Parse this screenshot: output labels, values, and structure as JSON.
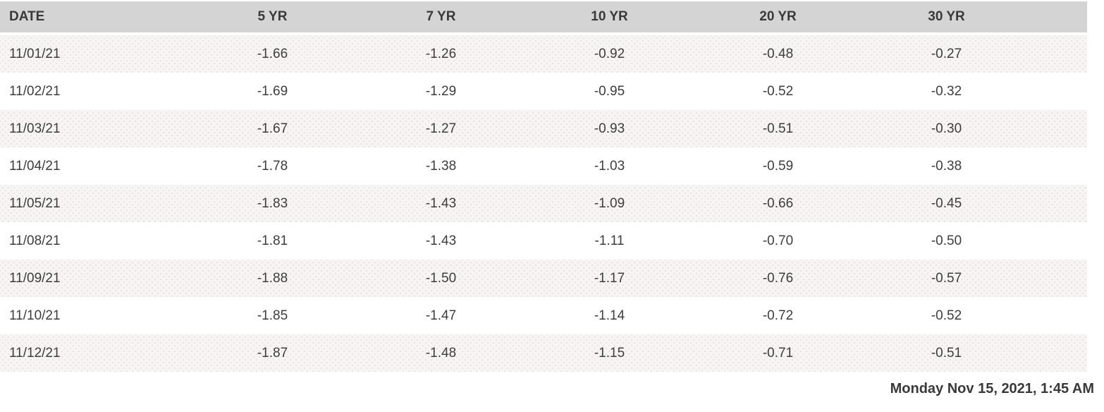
{
  "table": {
    "columns": [
      "DATE",
      "5 YR",
      "7 YR",
      "10 YR",
      "20 YR",
      "30 YR"
    ],
    "rows": [
      {
        "date": "11/01/21",
        "values": [
          "-1.66",
          "-1.26",
          "-0.92",
          "-0.48",
          "-0.27"
        ]
      },
      {
        "date": "11/02/21",
        "values": [
          "-1.69",
          "-1.29",
          "-0.95",
          "-0.52",
          "-0.32"
        ]
      },
      {
        "date": "11/03/21",
        "values": [
          "-1.67",
          "-1.27",
          "-0.93",
          "-0.51",
          "-0.30"
        ]
      },
      {
        "date": "11/04/21",
        "values": [
          "-1.78",
          "-1.38",
          "-1.03",
          "-0.59",
          "-0.38"
        ]
      },
      {
        "date": "11/05/21",
        "values": [
          "-1.83",
          "-1.43",
          "-1.09",
          "-0.66",
          "-0.45"
        ]
      },
      {
        "date": "11/08/21",
        "values": [
          "-1.81",
          "-1.43",
          "-1.11",
          "-0.70",
          "-0.50"
        ]
      },
      {
        "date": "11/09/21",
        "values": [
          "-1.88",
          "-1.50",
          "-1.17",
          "-0.76",
          "-0.57"
        ]
      },
      {
        "date": "11/10/21",
        "values": [
          "-1.85",
          "-1.47",
          "-1.14",
          "-0.72",
          "-0.52"
        ]
      },
      {
        "date": "11/12/21",
        "values": [
          "-1.87",
          "-1.48",
          "-1.15",
          "-0.71",
          "-0.51"
        ]
      }
    ]
  },
  "footer": {
    "timestamp": "Monday Nov 15, 2021, 1:45 AM"
  },
  "colors": {
    "header_bg": "#d4d4d4",
    "header_text": "#393939",
    "cell_text": "#3d3d3d",
    "row_alt_bg": "#f7f5f4",
    "page_bg": "#ffffff"
  }
}
